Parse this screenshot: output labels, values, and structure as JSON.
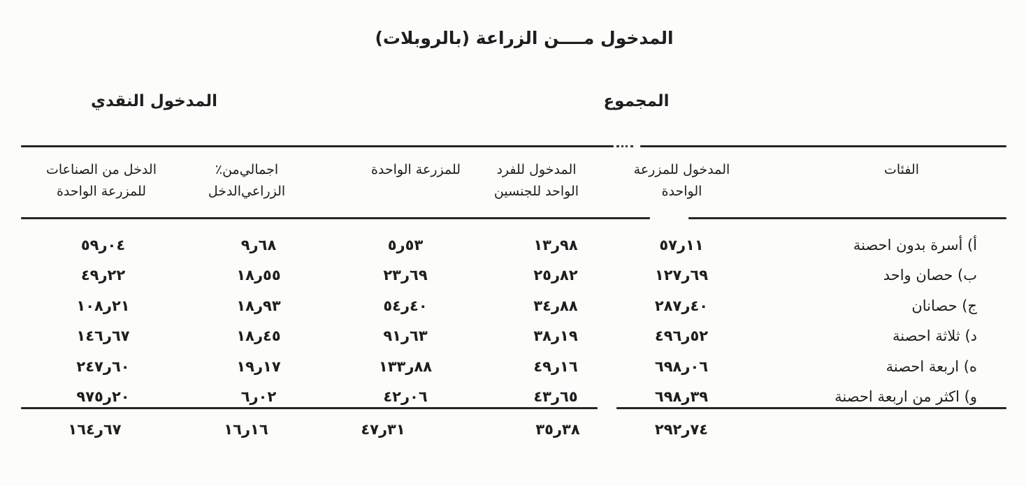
{
  "title": "المدخول مــــن الزراعة (بالروبلات)",
  "sections": {
    "cash_income": "المدخول النقدي",
    "total": "المجموع"
  },
  "columns": {
    "categories": "الفئات",
    "income_per_farm": {
      "line1": "المدخول للمزرعة",
      "line2": "الواحدة"
    },
    "income_per_capita": {
      "line1": "المدخول للفرد",
      "line2": "الواحد للجنسين"
    },
    "cash_per_farm": {
      "line1": "للمزرعة الواحدة"
    },
    "pct_of_agri_income": {
      "line1": "٪ من اجمالي",
      "line2": "الدخل الزراعي"
    },
    "industries_per_farm": {
      "line1": "الدخل من الصناعات",
      "line2": "للمزرعة الواحدة"
    }
  },
  "rows": [
    {
      "label": "أ) أسرة بدون احصنة",
      "farm": "٥٧ر١١",
      "capita": "١٣ر٩٨",
      "cash": "٥ر٥٣",
      "pct": "٩ر٦٨",
      "industries": "٥٩ر٠٤"
    },
    {
      "label": "ب) حصان واحد",
      "farm": "١٢٧ر٦٩",
      "capita": "٢٥ر٨٢",
      "cash": "٢٣ر٦٩",
      "pct": "١٨ر٥٥",
      "industries": "٤٩ر٢٢"
    },
    {
      "label": "ج) حصانان",
      "farm": "٢٨٧ر٤٠",
      "capita": "٣٤ر٨٨",
      "cash": "٥٤ر٤٠",
      "pct": "١٨ر٩٣",
      "industries": "١٠٨ر٢١"
    },
    {
      "label": "د) ثلاثة احصنة",
      "farm": "٤٩٦ر٥٢",
      "capita": "٣٨ر١٩",
      "cash": "٩١ر٦٣",
      "pct": "١٨ر٤٥",
      "industries": "١٤٦ر٦٧"
    },
    {
      "label": "ه) اربعة احصنة",
      "farm": "٦٩٨ر٠٦",
      "capita": "٤٩ر١٦",
      "cash": "١٣٣ر٨٨",
      "pct": "١٩ر١٧",
      "industries": "٢٤٧ر٦٠"
    },
    {
      "label": "و) اكثر من اربعة احصنة",
      "farm": "٦٩٨ر٣٩",
      "capita": "٤٣ر٦٥",
      "cash": "٤٢ر٠٦",
      "pct": "٦ر٠٢",
      "industries": "٩٧٥ر٢٠"
    }
  ],
  "totals": {
    "farm": "٢٩٢ر٧٤",
    "capita": "٣٥ر٣٨",
    "cash": "٤٧ر٣١",
    "pct": "١٦ر١٦",
    "industries": "١٦٤ر٦٧"
  },
  "values_latin": {
    "income_per_farm": [
      57.11,
      127.69,
      287.4,
      496.52,
      698.06,
      698.39
    ],
    "income_per_capita": [
      13.98,
      25.82,
      34.88,
      38.19,
      49.16,
      43.65
    ],
    "cash_per_farm": [
      5.53,
      23.69,
      54.4,
      91.63,
      133.88,
      42.06
    ],
    "pct_of_agri_income": [
      9.68,
      18.55,
      18.93,
      18.45,
      19.17,
      6.02
    ],
    "industries_per_farm": [
      59.04,
      49.22,
      108.21,
      146.67,
      247.6,
      975.2
    ],
    "totals": {
      "income_per_farm": 292.74,
      "income_per_capita": 35.38,
      "cash_per_farm": 47.31,
      "pct_of_agri_income": 16.16,
      "industries_per_farm": 164.67
    }
  },
  "colors": {
    "ink": "#262624",
    "paper": "#fcfcfa"
  }
}
